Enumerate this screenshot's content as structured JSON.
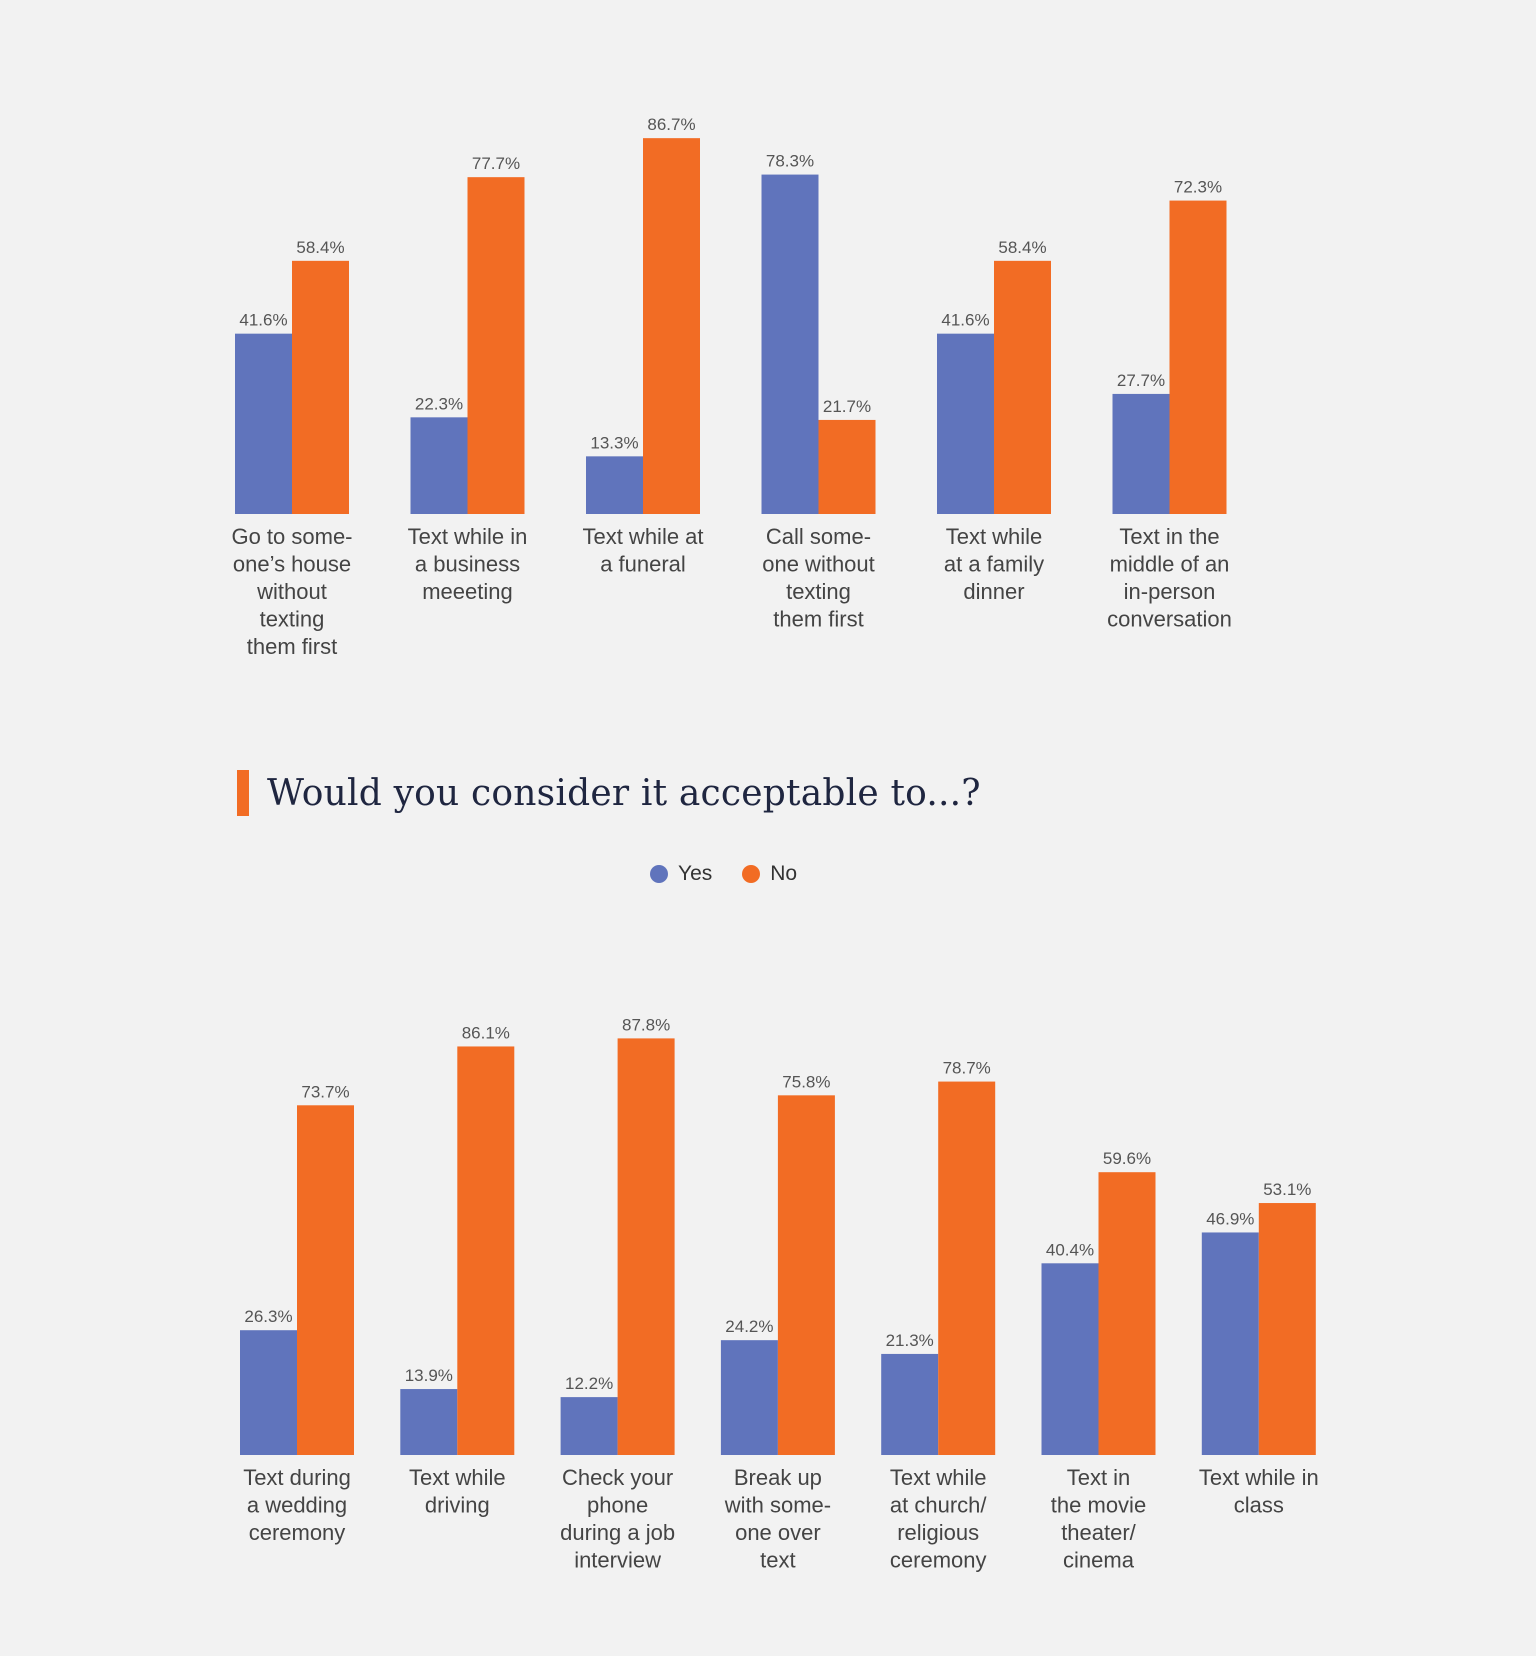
{
  "colors": {
    "yes": "#6074bc",
    "no": "#f26c24",
    "accent": "#f26c24"
  },
  "heading": {
    "text": "Would you consider it acceptable to...?"
  },
  "legend": {
    "yes_label": "Yes",
    "no_label": "No"
  },
  "chart_data": [
    {
      "type": "bar",
      "title": "",
      "xlabel": "",
      "ylabel": "",
      "ylim": [
        0,
        100
      ],
      "categories": [
        [
          "Go to some-",
          "one’s house",
          "without",
          "texting",
          "them first"
        ],
        [
          "Text while in",
          "a business",
          "meeeting"
        ],
        [
          "Text while at",
          "a funeral"
        ],
        [
          "Call some-",
          "one without",
          "texting",
          "them first"
        ],
        [
          "Text while",
          "at a family",
          "dinner"
        ],
        [
          "Text in the",
          "middle of an",
          "in-person",
          "conversation"
        ]
      ],
      "series": [
        {
          "name": "Yes",
          "values": [
            41.6,
            22.3,
            13.3,
            78.3,
            41.6,
            27.7
          ],
          "labels": [
            "41.6%",
            "22.3%",
            "13.3%",
            "78.3%",
            "41.6%",
            "27.7%"
          ]
        },
        {
          "name": "No",
          "values": [
            58.4,
            77.7,
            86.7,
            21.7,
            58.4,
            72.3
          ],
          "labels": [
            "58.4%",
            "77.7%",
            "86.7%",
            "21.7%",
            "58.4%",
            "72.3%"
          ]
        }
      ]
    },
    {
      "type": "bar",
      "title": "Would you consider it acceptable to...?",
      "xlabel": "",
      "ylabel": "",
      "ylim": [
        0,
        100
      ],
      "legend": [
        "Yes",
        "No"
      ],
      "categories": [
        [
          "Text during",
          "a wedding",
          "ceremony"
        ],
        [
          "Text while",
          "driving"
        ],
        [
          "Check your",
          "phone",
          "during a job",
          "interview"
        ],
        [
          "Break up",
          "with some-",
          "one over",
          "text"
        ],
        [
          "Text while",
          "at church/",
          "religious",
          "ceremony"
        ],
        [
          "Text in",
          "the movie",
          "theater/",
          "cinema"
        ],
        [
          "Text while in",
          "class"
        ]
      ],
      "series": [
        {
          "name": "Yes",
          "values": [
            26.3,
            13.9,
            12.2,
            24.2,
            21.3,
            40.4,
            46.9
          ],
          "labels": [
            "26.3%",
            "13.9%",
            "12.2%",
            "24.2%",
            "21.3%",
            "40.4%",
            "46.9%"
          ]
        },
        {
          "name": "No",
          "values": [
            73.7,
            86.1,
            87.8,
            75.8,
            78.7,
            59.6,
            53.1
          ],
          "labels": [
            "73.7%",
            "86.1%",
            "87.8%",
            "75.8%",
            "78.7%",
            "59.6%",
            "53.1%"
          ]
        }
      ]
    }
  ]
}
